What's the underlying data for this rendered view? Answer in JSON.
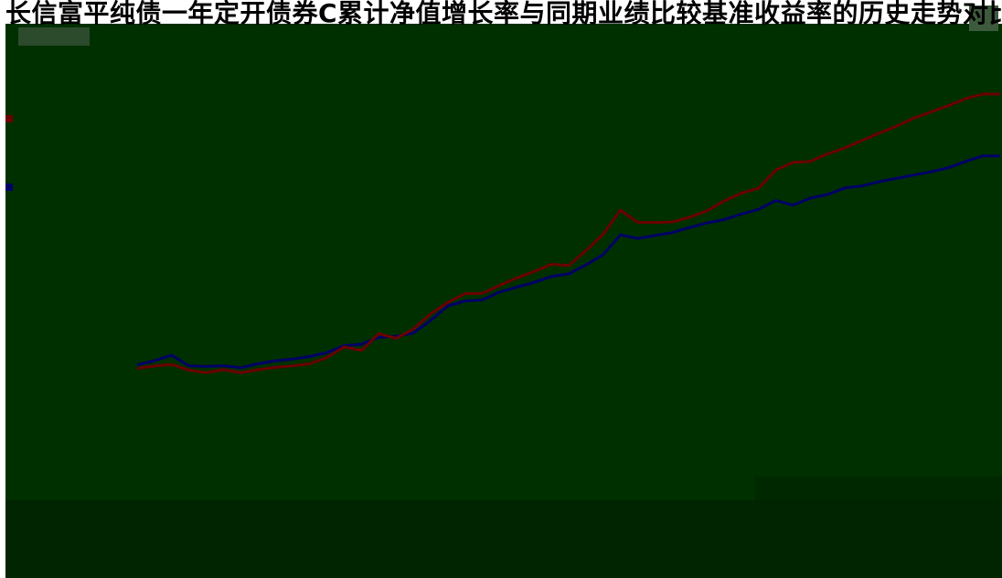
{
  "title": "长信富平纯债一年定开债券C累计净值增长率与同期业绩比较基准收益率的历史走势对比图",
  "colors": {
    "background": "#003000",
    "series_1": "#6b0000",
    "series_2": "#000066"
  },
  "chart_data": {
    "type": "line",
    "title": "长信富平纯债一年定开债券C累计净值增长率与同期业绩比较基准收益率的历史走势对比图",
    "xlabel": "",
    "ylabel": "",
    "ylim": [
      0,
      100
    ],
    "grid": false,
    "legend": "bottom",
    "x": [
      0,
      2,
      4,
      6,
      8,
      10,
      12,
      14,
      16,
      18,
      20,
      22,
      24,
      26,
      28,
      30,
      32,
      34,
      36,
      38,
      40,
      42,
      44,
      46,
      48,
      50,
      52,
      54,
      56,
      58,
      60,
      62,
      64,
      66,
      68,
      70,
      72,
      74,
      76,
      78,
      80,
      82,
      84,
      86,
      88,
      90,
      92,
      94,
      96,
      98,
      100
    ],
    "series": [
      {
        "values": [
          17.0,
          17.7,
          18.2,
          16.5,
          15.7,
          16.6,
          15.7,
          16.6,
          17.3,
          17.8,
          18.4,
          20.3,
          23.5,
          22.4,
          27.5,
          26.1,
          28.9,
          33.5,
          37.0,
          39.6,
          39.7,
          42.1,
          44.4,
          46.3,
          48.5,
          48.1,
          52.6,
          57.6,
          64.9,
          61.2,
          61.1,
          61.3,
          62.7,
          64.6,
          67.6,
          70.0,
          71.5,
          77.0,
          79.3,
          79.6,
          81.9,
          83.7,
          86.0,
          88.2,
          90.3,
          92.7,
          94.6,
          96.5,
          98.6,
          100.0,
          100.0
        ]
      },
      {
        "values": [
          18.1,
          19.3,
          21.0,
          17.8,
          17.6,
          17.8,
          17.2,
          18.4,
          19.3,
          19.8,
          20.6,
          21.8,
          23.9,
          24.3,
          26.4,
          26.7,
          27.7,
          31.5,
          35.9,
          37.4,
          37.7,
          40.1,
          41.6,
          43.0,
          44.8,
          45.6,
          48.3,
          51.4,
          57.4,
          56.3,
          57.2,
          58.1,
          59.6,
          61.0,
          62.0,
          63.7,
          65.1,
          67.8,
          66.4,
          68.5,
          69.6,
          71.6,
          72.2,
          73.5,
          74.5,
          75.5,
          76.5,
          77.7,
          79.6,
          81.3,
          81.3
        ]
      }
    ]
  }
}
